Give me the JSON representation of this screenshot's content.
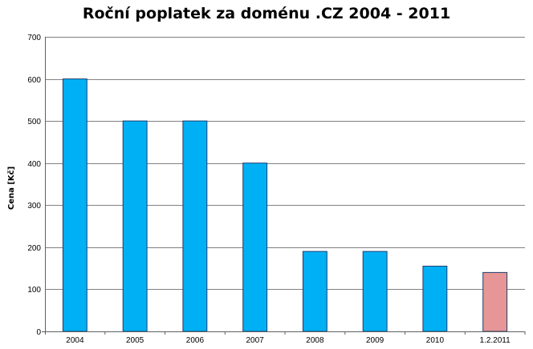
{
  "chart_data": {
    "type": "bar",
    "title": "Roční poplatek za doménu .CZ 2004 - 2011",
    "xlabel": "",
    "ylabel": "Cena [Kč]",
    "ylim": [
      0,
      700
    ],
    "yticks": [
      0,
      100,
      200,
      300,
      400,
      500,
      600,
      700
    ],
    "grid": true,
    "categories": [
      "2004",
      "2005",
      "2006",
      "2007",
      "2008",
      "2009",
      "2010",
      "1.2.2011"
    ],
    "values": [
      600,
      500,
      500,
      400,
      190,
      190,
      155,
      140
    ],
    "colors": {
      "default_bar": "#00b0f5",
      "highlight_bar": "#e69696",
      "bar_outline": "#1f3f6f",
      "grid": "#808080",
      "axis": "#606060"
    },
    "highlight_index": 7
  }
}
